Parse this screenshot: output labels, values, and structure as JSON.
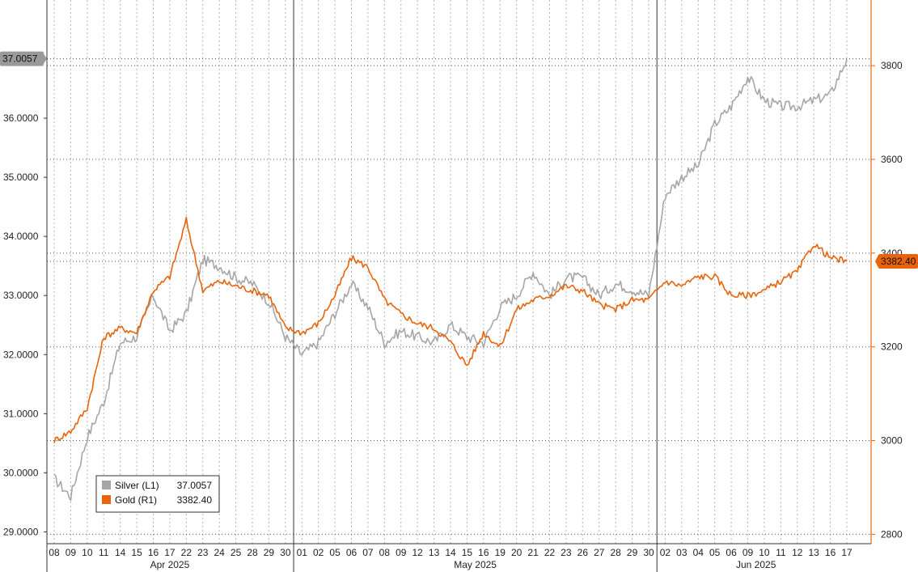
{
  "chart_data": {
    "type": "line",
    "title": "",
    "x_axis": {
      "day_labels": [
        "08",
        "09",
        "10",
        "11",
        "14",
        "15",
        "16",
        "17",
        "22",
        "23",
        "24",
        "25",
        "28",
        "29",
        "30",
        "01",
        "02",
        "05",
        "06",
        "07",
        "08",
        "09",
        "12",
        "13",
        "14",
        "15",
        "16",
        "19",
        "20",
        "21",
        "22",
        "23",
        "26",
        "27",
        "28",
        "29",
        "30",
        "02",
        "03",
        "04",
        "05",
        "06",
        "09",
        "10",
        "11",
        "12",
        "13",
        "16",
        "17"
      ],
      "month_labels": [
        {
          "label": "Apr 2025",
          "from": 0,
          "to": 14
        },
        {
          "label": "May 2025",
          "from": 15,
          "to": 36
        },
        {
          "label": "Jun 2025",
          "from": 37,
          "to": 48
        }
      ]
    },
    "left_axis": {
      "ticks": [
        "29.0000",
        "30.0000",
        "31.0000",
        "32.0000",
        "33.0000",
        "34.0000",
        "35.0000",
        "36.0000"
      ],
      "range": [
        28.8,
        38.0
      ],
      "color": "#888888"
    },
    "right_axis": {
      "ticks": [
        "2800",
        "3000",
        "3200",
        "3400",
        "3600",
        "3800"
      ],
      "range": [
        2780,
        3940
      ],
      "color": "#e8630a"
    },
    "grid": true,
    "legend": {
      "placement": "bottom-left"
    },
    "series": [
      {
        "name": "Silver (L1)",
        "last_value": "37.0057",
        "axis": "left",
        "color": "#a6a6a6",
        "values": [
          29.9,
          29.6,
          30.6,
          31.2,
          32.2,
          32.3,
          33.0,
          32.4,
          32.7,
          33.6,
          33.5,
          33.3,
          33.2,
          32.9,
          32.3,
          32.0,
          32.2,
          32.7,
          33.2,
          32.8,
          32.2,
          32.4,
          32.3,
          32.2,
          32.5,
          32.3,
          32.2,
          32.8,
          33.0,
          33.4,
          33.0,
          33.3,
          33.3,
          33.0,
          33.2,
          33.1,
          33.0,
          34.7,
          35.0,
          35.2,
          35.9,
          36.2,
          36.7,
          36.3,
          36.2,
          36.2,
          36.3,
          36.4,
          37.0
        ]
      },
      {
        "name": "Gold (R1)",
        "last_value": "3382.40",
        "axis": "right",
        "color": "#e8630a",
        "values": [
          3000,
          3020,
          3070,
          3220,
          3240,
          3230,
          3320,
          3350,
          3470,
          3320,
          3340,
          3330,
          3320,
          3310,
          3240,
          3230,
          3250,
          3310,
          3390,
          3370,
          3300,
          3270,
          3250,
          3240,
          3210,
          3160,
          3230,
          3200,
          3280,
          3300,
          3310,
          3330,
          3320,
          3290,
          3280,
          3300,
          3300,
          3340,
          3330,
          3350,
          3350,
          3310,
          3310,
          3320,
          3340,
          3360,
          3420,
          3390,
          3382.4
        ]
      }
    ],
    "ref_lines": [
      {
        "axis": "left",
        "value": 37.0057
      },
      {
        "axis": "right",
        "value": 3382.4
      }
    ]
  }
}
